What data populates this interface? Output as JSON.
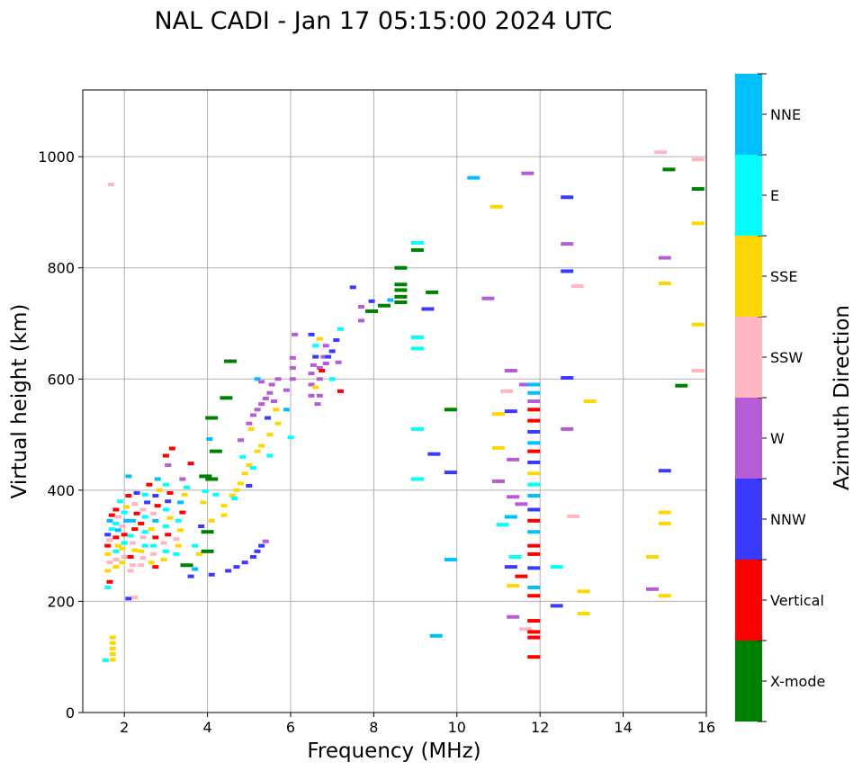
{
  "chart_data": {
    "type": "scatter",
    "title": "NAL CADI - Jan 17 05:15:00 2024 UTC",
    "xlabel": "Frequency (MHz)",
    "ylabel": "Virtual height (km)",
    "xlim": [
      1,
      16
    ],
    "ylim": [
      0,
      1120
    ],
    "xticks": [
      2,
      4,
      6,
      8,
      10,
      12,
      14,
      16
    ],
    "yticks": [
      0,
      200,
      400,
      600,
      800,
      1000
    ],
    "grid": true,
    "colorbar": {
      "label": "Azimuth Direction",
      "categories": [
        "X-mode",
        "Vertical",
        "NNW",
        "W",
        "SSW",
        "SSE",
        "E",
        "NNE"
      ],
      "colors": [
        "#008000",
        "#ff0000",
        "#3a3aff",
        "#b65cd6",
        "#ffb6c1",
        "#ffd700",
        "#00ffff",
        "#00bfff"
      ],
      "placement": "right"
    },
    "point_format": [
      "frequency_mhz",
      "height_km",
      "category_index"
    ],
    "points": [
      [
        1.55,
        94,
        6
      ],
      [
        1.72,
        95,
        5
      ],
      [
        1.72,
        105,
        5
      ],
      [
        1.72,
        115,
        5
      ],
      [
        1.72,
        125,
        5
      ],
      [
        1.72,
        135,
        5
      ],
      [
        1.68,
        950,
        4
      ],
      [
        1.6,
        225,
        6
      ],
      [
        1.65,
        235,
        1
      ],
      [
        1.6,
        255,
        5
      ],
      [
        1.65,
        270,
        4
      ],
      [
        1.6,
        285,
        5
      ],
      [
        1.6,
        300,
        1
      ],
      [
        1.65,
        310,
        4
      ],
      [
        1.6,
        320,
        2
      ],
      [
        1.7,
        330,
        6
      ],
      [
        1.65,
        345,
        7
      ],
      [
        1.7,
        355,
        1
      ],
      [
        1.8,
        262,
        5
      ],
      [
        1.8,
        275,
        4
      ],
      [
        1.8,
        290,
        6
      ],
      [
        1.85,
        300,
        5
      ],
      [
        1.8,
        315,
        1
      ],
      [
        1.85,
        328,
        7
      ],
      [
        1.8,
        340,
        6
      ],
      [
        1.85,
        352,
        4
      ],
      [
        1.8,
        365,
        1
      ],
      [
        1.9,
        380,
        6
      ],
      [
        1.95,
        270,
        5
      ],
      [
        2.0,
        280,
        4
      ],
      [
        1.95,
        295,
        5
      ],
      [
        2.0,
        305,
        6
      ],
      [
        2.0,
        320,
        1
      ],
      [
        1.95,
        335,
        4
      ],
      [
        2.05,
        345,
        7
      ],
      [
        2.0,
        360,
        6
      ],
      [
        2.05,
        370,
        5
      ],
      [
        2.1,
        390,
        1
      ],
      [
        2.15,
        255,
        4
      ],
      [
        2.2,
        265,
        4
      ],
      [
        2.15,
        280,
        1
      ],
      [
        2.25,
        292,
        5
      ],
      [
        2.2,
        305,
        4
      ],
      [
        2.15,
        318,
        6
      ],
      [
        2.25,
        330,
        1
      ],
      [
        2.2,
        345,
        7
      ],
      [
        2.3,
        358,
        1
      ],
      [
        2.25,
        375,
        4
      ],
      [
        2.3,
        395,
        2
      ],
      [
        2.1,
        425,
        7
      ],
      [
        2.1,
        205,
        2
      ],
      [
        2.25,
        207,
        4
      ],
      [
        2.4,
        265,
        4
      ],
      [
        2.45,
        278,
        4
      ],
      [
        2.4,
        290,
        5
      ],
      [
        2.5,
        300,
        6
      ],
      [
        2.45,
        315,
        4
      ],
      [
        2.5,
        325,
        6
      ],
      [
        2.4,
        340,
        1
      ],
      [
        2.5,
        352,
        6
      ],
      [
        2.45,
        365,
        4
      ],
      [
        2.55,
        378,
        2
      ],
      [
        2.5,
        392,
        6
      ],
      [
        2.6,
        410,
        1
      ],
      [
        2.65,
        270,
        5
      ],
      [
        2.7,
        285,
        4
      ],
      [
        2.7,
        300,
        6
      ],
      [
        2.75,
        315,
        1
      ],
      [
        2.65,
        330,
        5
      ],
      [
        2.75,
        345,
        7
      ],
      [
        2.7,
        358,
        4
      ],
      [
        2.8,
        372,
        1
      ],
      [
        2.75,
        390,
        2
      ],
      [
        2.85,
        400,
        5
      ],
      [
        2.8,
        420,
        7
      ],
      [
        2.75,
        262,
        1
      ],
      [
        2.95,
        275,
        5
      ],
      [
        3.0,
        290,
        6
      ],
      [
        2.95,
        305,
        4
      ],
      [
        3.05,
        320,
        1
      ],
      [
        3.0,
        335,
        6
      ],
      [
        3.1,
        350,
        5
      ],
      [
        3.0,
        365,
        6
      ],
      [
        3.05,
        380,
        2
      ],
      [
        3.1,
        395,
        1
      ],
      [
        3.0,
        410,
        6
      ],
      [
        3.05,
        445,
        3
      ],
      [
        3.0,
        462,
        1
      ],
      [
        3.15,
        475,
        1
      ],
      [
        3.25,
        285,
        6
      ],
      [
        3.3,
        300,
        5
      ],
      [
        3.25,
        312,
        4
      ],
      [
        3.35,
        328,
        5
      ],
      [
        3.3,
        345,
        6
      ],
      [
        3.4,
        360,
        1
      ],
      [
        3.35,
        378,
        7
      ],
      [
        3.45,
        392,
        5
      ],
      [
        3.5,
        405,
        6
      ],
      [
        3.4,
        420,
        3
      ],
      [
        3.6,
        448,
        1
      ],
      [
        3.5,
        265,
        0
      ],
      [
        3.7,
        258,
        7
      ],
      [
        3.8,
        285,
        5
      ],
      [
        3.7,
        300,
        6
      ],
      [
        3.85,
        335,
        2
      ],
      [
        3.9,
        378,
        5
      ],
      [
        3.95,
        398,
        6
      ],
      [
        3.95,
        425,
        0
      ],
      [
        4.0,
        290,
        0
      ],
      [
        4.0,
        325,
        0
      ],
      [
        4.05,
        492,
        7
      ],
      [
        4.1,
        420,
        0
      ],
      [
        4.1,
        530,
        0
      ],
      [
        4.45,
        566,
        0
      ],
      [
        4.55,
        632,
        0
      ],
      [
        4.2,
        470,
        0
      ],
      [
        3.6,
        245,
        2
      ],
      [
        4.1,
        248,
        2
      ],
      [
        4.5,
        255,
        2
      ],
      [
        4.7,
        262,
        2
      ],
      [
        4.9,
        270,
        2
      ],
      [
        5.1,
        280,
        2
      ],
      [
        5.2,
        290,
        2
      ],
      [
        5.3,
        300,
        2
      ],
      [
        5.4,
        308,
        3
      ],
      [
        4.1,
        345,
        5
      ],
      [
        4.4,
        355,
        5
      ],
      [
        4.4,
        372,
        5
      ],
      [
        4.6,
        390,
        5
      ],
      [
        4.7,
        400,
        5
      ],
      [
        4.8,
        412,
        5
      ],
      [
        4.9,
        430,
        5
      ],
      [
        5.0,
        445,
        5
      ],
      [
        5.2,
        470,
        5
      ],
      [
        5.3,
        480,
        5
      ],
      [
        5.5,
        500,
        5
      ],
      [
        5.7,
        520,
        5
      ],
      [
        6.0,
        495,
        6
      ],
      [
        4.2,
        392,
        6
      ],
      [
        4.65,
        385,
        6
      ],
      [
        4.85,
        460,
        6
      ],
      [
        5.0,
        408,
        2
      ],
      [
        5.1,
        440,
        6
      ],
      [
        5.5,
        462,
        6
      ],
      [
        4.8,
        490,
        3
      ],
      [
        5.0,
        520,
        3
      ],
      [
        5.1,
        535,
        3
      ],
      [
        5.2,
        545,
        3
      ],
      [
        5.3,
        555,
        3
      ],
      [
        5.4,
        565,
        3
      ],
      [
        5.5,
        575,
        3
      ],
      [
        5.55,
        590,
        3
      ],
      [
        5.6,
        560,
        3
      ],
      [
        5.7,
        600,
        3
      ],
      [
        5.2,
        600,
        7
      ],
      [
        5.3,
        595,
        3
      ],
      [
        5.9,
        580,
        3
      ],
      [
        6.05,
        600,
        3
      ],
      [
        6.05,
        620,
        3
      ],
      [
        5.9,
        545,
        7
      ],
      [
        5.45,
        530,
        2
      ],
      [
        5.65,
        545,
        5
      ],
      [
        5.05,
        510,
        5
      ],
      [
        6.5,
        570,
        3
      ],
      [
        6.5,
        590,
        3
      ],
      [
        6.5,
        610,
        3
      ],
      [
        6.55,
        625,
        3
      ],
      [
        6.7,
        570,
        3
      ],
      [
        6.7,
        600,
        3
      ],
      [
        6.7,
        620,
        3
      ],
      [
        6.8,
        640,
        3
      ],
      [
        6.85,
        660,
        3
      ],
      [
        6.9,
        640,
        2
      ],
      [
        6.6,
        640,
        2
      ],
      [
        6.5,
        680,
        2
      ],
      [
        6.7,
        672,
        5
      ],
      [
        6.6,
        660,
        6
      ],
      [
        6.75,
        615,
        1
      ],
      [
        6.6,
        585,
        5
      ],
      [
        6.65,
        555,
        3
      ],
      [
        7.0,
        650,
        2
      ],
      [
        7.1,
        670,
        2
      ],
      [
        7.2,
        690,
        6
      ],
      [
        7.15,
        630,
        3
      ],
      [
        6.1,
        680,
        3
      ],
      [
        6.05,
        638,
        3
      ],
      [
        7.2,
        578,
        1
      ],
      [
        7.0,
        600,
        6
      ],
      [
        6.85,
        628,
        3
      ],
      [
        7.5,
        765,
        2
      ],
      [
        7.7,
        730,
        3
      ],
      [
        7.7,
        705,
        3
      ],
      [
        7.95,
        740,
        2
      ],
      [
        7.95,
        722,
        0
      ],
      [
        8.25,
        732,
        0
      ],
      [
        8.4,
        742,
        7
      ],
      [
        8.65,
        800,
        0
      ],
      [
        8.65,
        770,
        0
      ],
      [
        8.65,
        760,
        0
      ],
      [
        8.65,
        748,
        0
      ],
      [
        8.65,
        738,
        0
      ],
      [
        9.05,
        845,
        6
      ],
      [
        9.05,
        832,
        0
      ],
      [
        9.05,
        675,
        6
      ],
      [
        9.05,
        655,
        6
      ],
      [
        9.05,
        510,
        6
      ],
      [
        9.05,
        420,
        6
      ],
      [
        9.4,
        756,
        0
      ],
      [
        9.3,
        726,
        2
      ],
      [
        9.85,
        545,
        0
      ],
      [
        9.45,
        465,
        2
      ],
      [
        9.85,
        432,
        2
      ],
      [
        9.85,
        275,
        7
      ],
      [
        9.5,
        138,
        7
      ],
      [
        10.4,
        962,
        7
      ],
      [
        10.95,
        910,
        5
      ],
      [
        11.7,
        970,
        3
      ],
      [
        10.75,
        745,
        3
      ],
      [
        11.0,
        537,
        5
      ],
      [
        11.0,
        476,
        5
      ],
      [
        11.0,
        416,
        3
      ],
      [
        11.3,
        615,
        3
      ],
      [
        11.2,
        578,
        4
      ],
      [
        11.3,
        542,
        2
      ],
      [
        11.35,
        455,
        3
      ],
      [
        11.35,
        388,
        3
      ],
      [
        11.3,
        352,
        7
      ],
      [
        11.1,
        338,
        6
      ],
      [
        11.4,
        280,
        6
      ],
      [
        11.3,
        262,
        2
      ],
      [
        11.35,
        228,
        5
      ],
      [
        11.35,
        172,
        3
      ],
      [
        11.65,
        150,
        4
      ],
      [
        11.55,
        245,
        1
      ],
      [
        11.55,
        375,
        3
      ],
      [
        11.65,
        590,
        3
      ],
      [
        11.85,
        100,
        1
      ],
      [
        11.85,
        135,
        1
      ],
      [
        11.85,
        145,
        1
      ],
      [
        11.85,
        165,
        1
      ],
      [
        11.85,
        210,
        1
      ],
      [
        11.85,
        225,
        7
      ],
      [
        11.85,
        260,
        2
      ],
      [
        11.85,
        285,
        1
      ],
      [
        11.85,
        300,
        1
      ],
      [
        11.85,
        325,
        7
      ],
      [
        11.85,
        345,
        1
      ],
      [
        11.85,
        365,
        2
      ],
      [
        11.85,
        390,
        7
      ],
      [
        11.85,
        410,
        6
      ],
      [
        11.85,
        430,
        5
      ],
      [
        11.85,
        450,
        2
      ],
      [
        11.85,
        470,
        1
      ],
      [
        11.85,
        485,
        7
      ],
      [
        11.85,
        505,
        2
      ],
      [
        11.85,
        525,
        1
      ],
      [
        11.85,
        545,
        1
      ],
      [
        11.85,
        560,
        3
      ],
      [
        11.85,
        575,
        7
      ],
      [
        11.85,
        590,
        7
      ],
      [
        12.65,
        927,
        2
      ],
      [
        12.65,
        843,
        3
      ],
      [
        12.65,
        794,
        2
      ],
      [
        12.9,
        767,
        4
      ],
      [
        12.65,
        602,
        2
      ],
      [
        12.65,
        510,
        3
      ],
      [
        13.2,
        560,
        5
      ],
      [
        12.8,
        353,
        4
      ],
      [
        12.4,
        262,
        6
      ],
      [
        12.4,
        192,
        2
      ],
      [
        13.05,
        218,
        5
      ],
      [
        13.05,
        178,
        5
      ],
      [
        14.9,
        1008,
        4
      ],
      [
        15.1,
        977,
        0
      ],
      [
        15.8,
        995,
        4
      ],
      [
        15.8,
        942,
        0
      ],
      [
        15.8,
        880,
        5
      ],
      [
        15.0,
        818,
        3
      ],
      [
        15.0,
        772,
        5
      ],
      [
        15.8,
        698,
        5
      ],
      [
        15.8,
        615,
        4
      ],
      [
        15.4,
        588,
        0
      ],
      [
        15.0,
        435,
        2
      ],
      [
        15.0,
        360,
        5
      ],
      [
        15.0,
        340,
        5
      ],
      [
        14.7,
        280,
        5
      ],
      [
        14.7,
        222,
        3
      ],
      [
        15.0,
        210,
        5
      ]
    ]
  }
}
